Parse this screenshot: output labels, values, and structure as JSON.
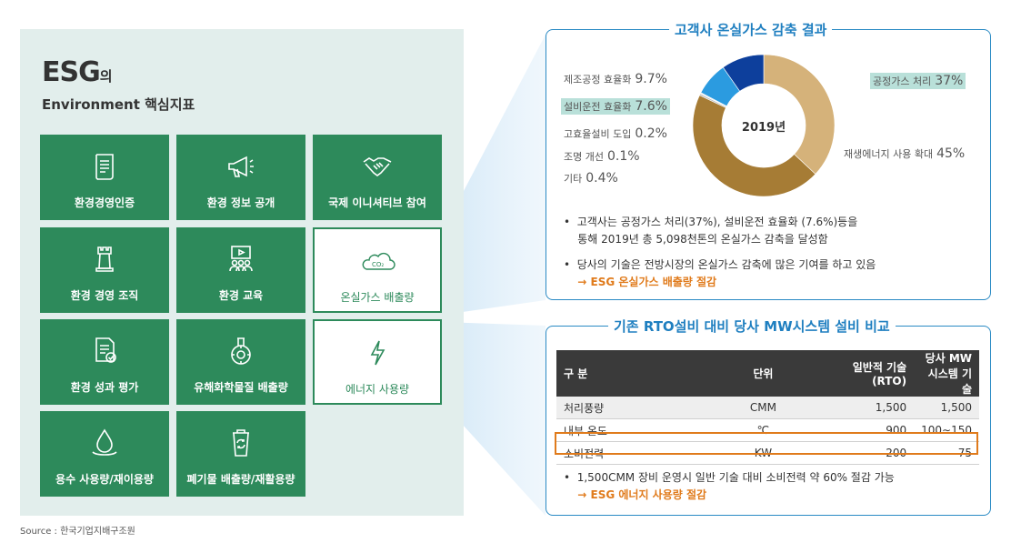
{
  "left": {
    "title_main": "ESG",
    "title_suffix": "의",
    "subtitle": "Environment 핵심지표",
    "tiles": [
      {
        "label": "환경경영인증",
        "icon": "scroll-icon",
        "highlight": false
      },
      {
        "label": "환경 정보 공개",
        "icon": "megaphone-icon",
        "highlight": false
      },
      {
        "label": "국제 이니셔티브 참여",
        "icon": "handshake-icon",
        "highlight": false
      },
      {
        "label": "환경 경영 조직",
        "icon": "tower-icon",
        "highlight": false
      },
      {
        "label": "환경 교육",
        "icon": "presentation-icon",
        "highlight": false
      },
      {
        "label": "온실가스 배출량",
        "icon": "co2-cloud-icon",
        "highlight": true
      },
      {
        "label": "환경 성과 평가",
        "icon": "document-check-icon",
        "highlight": false
      },
      {
        "label": "유해화학물질 배출량",
        "icon": "chemical-flask-icon",
        "highlight": false
      },
      {
        "label": "에너지 사용량",
        "icon": "lightning-icon",
        "highlight": true
      },
      {
        "label": "용수 사용량/재이용량",
        "icon": "water-drop-icon",
        "highlight": false
      },
      {
        "label": "폐기물 배출량/재활용량",
        "icon": "recycle-bin-icon",
        "highlight": false
      }
    ],
    "co2_text": "CO₂",
    "source": "Source : 한국기업지배구조원"
  },
  "donut_panel": {
    "title": "고객사 온실가스 감축 결과",
    "center_label": "2019년",
    "labels": [
      {
        "text": "제조공정 효율화",
        "pct": "9.7%"
      },
      {
        "text": "설비운전 효율화",
        "pct": "7.6%"
      },
      {
        "text": "고효율설비 도입",
        "pct": "0.2%"
      },
      {
        "text": "조명 개선",
        "pct": "0.1%"
      },
      {
        "text": "기타",
        "pct": "0.4%"
      },
      {
        "text": "공정가스 처리",
        "pct": "37%"
      },
      {
        "text": "재생에너지 사용 확대",
        "pct": "45%"
      }
    ],
    "bullet1_line1": "고객사는 공정가스 처리(37%), 설비운전 효율화 (7.6%)등을",
    "bullet1_line2": "통해 2019년 총 5,098천톤의 온실가스 감축을 달성함",
    "bullet2_line1": "당사의 기술은 전방시장의 온실가스 감축에 많은 기여를 하고 있음",
    "bullet2_line2": "→ ESG 온실가스 배출량 절감"
  },
  "chart_data": {
    "type": "pie",
    "title": "2019년",
    "categories": [
      "공정가스 처리",
      "재생에너지 사용 확대",
      "기타",
      "조명 개선",
      "고효율설비 도입",
      "설비운전 효율화",
      "제조공정 효율화"
    ],
    "values": [
      37,
      45,
      0.4,
      0.1,
      0.2,
      7.6,
      9.7
    ],
    "colors": [
      "#d5b27a",
      "#a67c35",
      "#bcbcbc",
      "#8c8c8c",
      "#cfcfcf",
      "#2b9be0",
      "#0d3f9c"
    ]
  },
  "table_panel": {
    "title": "기존 RTO설비 대비 당사 MW시스템 설비 비교",
    "headers": [
      "구 분",
      "단위",
      "일반적 기술 (RTO)",
      "당사 MW 시스템 기술"
    ],
    "header_rto_line1": "일반적 기술",
    "header_rto_line2": "(RTO)",
    "header_mw_line1": "당사 MW",
    "header_mw_line2": "시스템 기술",
    "rows": [
      [
        "처리풍량",
        "CMM",
        "1,500",
        "1,500"
      ],
      [
        "내부 온도",
        "℃",
        "900",
        "100∼150"
      ],
      [
        "소비전력",
        "KW",
        "200",
        "75"
      ]
    ],
    "bullet_line1": "1,500CMM 장비 운영시 일반 기술 대비 소비전력 약 60% 절감 가능",
    "bullet_line2": "→ ESG 에너지 사용량 절감"
  }
}
